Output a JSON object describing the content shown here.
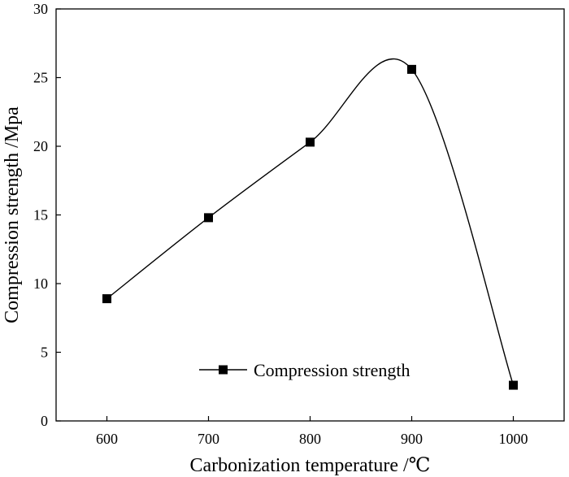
{
  "chart_data": {
    "type": "line",
    "title": "",
    "xlabel": "Carbonization temperature /℃",
    "ylabel": "Compression strength /Mpa",
    "x": [
      600,
      700,
      800,
      900,
      1000
    ],
    "series": [
      {
        "name": "Compression strength",
        "values": [
          8.9,
          14.8,
          20.3,
          25.6,
          2.6
        ],
        "marker": "square",
        "color": "#000000"
      }
    ],
    "xlim": [
      550,
      1050
    ],
    "ylim": [
      0,
      30
    ],
    "xticks": [
      600,
      700,
      800,
      900,
      1000
    ],
    "yticks": [
      0,
      5,
      10,
      15,
      20,
      25,
      30
    ],
    "grid": false,
    "legend_position": "bottom-center",
    "smooth": true
  }
}
